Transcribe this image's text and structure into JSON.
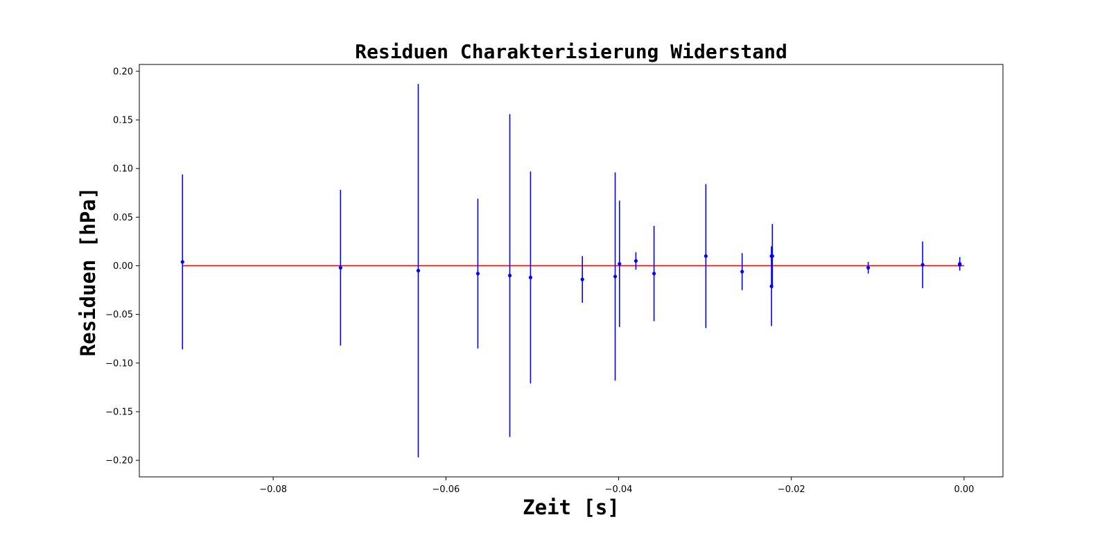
{
  "chart_data": {
    "type": "scatter",
    "title": "Residuen Charakterisierung Widerstand",
    "xlabel": "Zeit [s]",
    "ylabel": "Residuen [hPa]",
    "xlim": [
      -0.0955,
      0.0045
    ],
    "ylim": [
      -0.217,
      0.207
    ],
    "xticks": [
      -0.08,
      -0.06,
      -0.04,
      -0.02,
      0.0
    ],
    "xtick_labels": [
      "−0.08",
      "−0.06",
      "−0.04",
      "−0.02",
      "0.00"
    ],
    "yticks": [
      -0.2,
      -0.15,
      -0.1,
      -0.05,
      0.0,
      0.05,
      0.1,
      0.15,
      0.2
    ],
    "ytick_labels": [
      "−0.20",
      "−0.15",
      "−0.10",
      "−0.05",
      "0.00",
      "0.05",
      "0.10",
      "0.15",
      "0.20"
    ],
    "grid": false,
    "zero_line": {
      "y": 0.0,
      "x_from": -0.0905,
      "x_to": 0.0
    },
    "series": [
      {
        "points": [
          {
            "x": -0.0905,
            "y": 0.004,
            "yerr": 0.09
          },
          {
            "x": -0.0722,
            "y": -0.002,
            "yerr": 0.08
          },
          {
            "x": -0.0632,
            "y": -0.005,
            "yerr": 0.192
          },
          {
            "x": -0.0563,
            "y": -0.008,
            "yerr": 0.077
          },
          {
            "x": -0.0526,
            "y": -0.01,
            "yerr": 0.166
          },
          {
            "x": -0.0502,
            "y": -0.012,
            "yerr": 0.109
          },
          {
            "x": -0.0442,
            "y": -0.014,
            "yerr": 0.024
          },
          {
            "x": -0.0404,
            "y": -0.011,
            "yerr": 0.107
          },
          {
            "x": -0.0399,
            "y": 0.002,
            "yerr": 0.065
          },
          {
            "x": -0.038,
            "y": 0.005,
            "yerr": 0.009
          },
          {
            "x": -0.0359,
            "y": -0.008,
            "yerr": 0.049
          },
          {
            "x": -0.0299,
            "y": 0.01,
            "yerr": 0.074
          },
          {
            "x": -0.0257,
            "y": -0.006,
            "yerr": 0.019
          },
          {
            "x": -0.0223,
            "y": 0.01,
            "yerr": 0.01
          },
          {
            "x": -0.0223,
            "y": -0.021,
            "yerr": 0.041
          },
          {
            "x": -0.0222,
            "y": 0.01,
            "yerr": 0.033
          },
          {
            "x": -0.0111,
            "y": -0.002,
            "yerr": 0.006
          },
          {
            "x": -0.0048,
            "y": 0.001,
            "yerr": 0.024
          },
          {
            "x": -0.0005,
            "y": 0.002,
            "yerr": 0.007
          },
          {
            "x": -0.0005,
            "y": 0.001,
            "yerr": 0.005
          }
        ]
      }
    ],
    "colors": {
      "points": "#0000ff",
      "zero_line": "#ff0000",
      "axes": "#000000"
    }
  }
}
